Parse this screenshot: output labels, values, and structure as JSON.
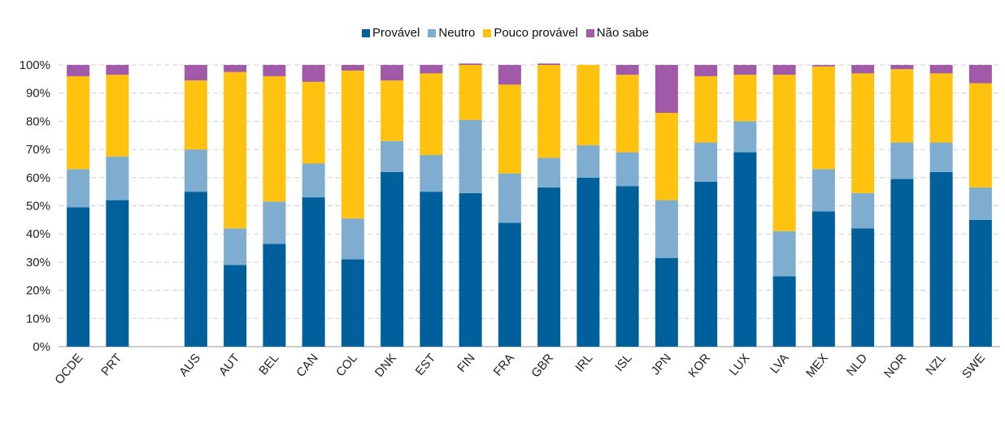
{
  "chart_data": {
    "type": "bar",
    "stacked": true,
    "title": "",
    "xlabel": "",
    "ylabel": "",
    "ylim": [
      0,
      100
    ],
    "y_ticks": [
      "0%",
      "10%",
      "20%",
      "30%",
      "40%",
      "50%",
      "60%",
      "70%",
      "80%",
      "90%",
      "100%"
    ],
    "grid": true,
    "legend_position": "top-center",
    "categories": [
      "OCDE",
      "PRT",
      "",
      "AUS",
      "AUT",
      "BEL",
      "CAN",
      "COL",
      "DNK",
      "EST",
      "FIN",
      "FRA",
      "GBR",
      "IRL",
      "ISL",
      "JPN",
      "KOR",
      "LUX",
      "LVA",
      "MEX",
      "NLD",
      "NOR",
      "NZL",
      "SWE"
    ],
    "series": [
      {
        "name": "Provável",
        "color": "#00609c",
        "values": [
          49.5,
          52,
          null,
          55,
          29,
          36.5,
          53,
          31,
          62,
          55,
          54.5,
          44,
          56.5,
          60,
          57,
          31.5,
          58.5,
          69,
          25,
          48,
          42,
          59.5,
          62,
          45
        ]
      },
      {
        "name": "Neutro",
        "color": "#7fadcf",
        "values": [
          13.5,
          15.5,
          null,
          15,
          13,
          15,
          12,
          14.5,
          11,
          13,
          26,
          17.5,
          10.5,
          11.5,
          12,
          20.5,
          14,
          11,
          16,
          15,
          12.5,
          13,
          10.5,
          11.5
        ]
      },
      {
        "name": "Pouco provável",
        "color": "#ffc20e",
        "values": [
          33,
          29,
          null,
          24.5,
          55.5,
          44.5,
          29,
          52.5,
          21.5,
          29,
          19.5,
          31.5,
          33,
          28.5,
          27.5,
          31,
          23.5,
          16.5,
          55.5,
          36.5,
          42.5,
          26,
          24.5,
          37
        ]
      },
      {
        "name": "Não sabe",
        "color": "#a05aa8",
        "values": [
          4,
          3.5,
          null,
          5.5,
          2.5,
          4,
          6,
          2,
          5.5,
          3,
          0.5,
          7,
          0.5,
          0,
          3.5,
          17,
          4,
          3.5,
          3.5,
          0.5,
          3,
          1.5,
          3,
          6.5
        ]
      }
    ]
  }
}
